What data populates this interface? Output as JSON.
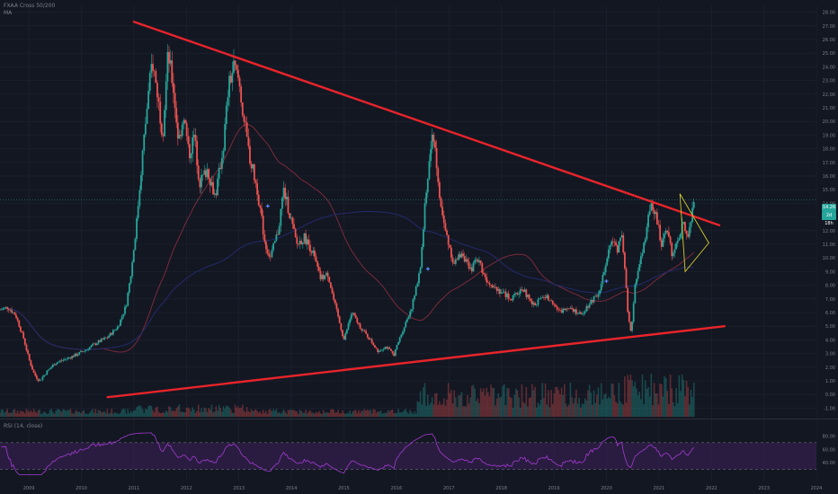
{
  "header": {
    "symbol_line": "FXAA Cross 50/200",
    "sub_line": "MA"
  },
  "rsi_header": {
    "title": "RSI (14, close)"
  },
  "price_tags": {
    "last": "14.26",
    "countdown": "2d 18h"
  },
  "colors": {
    "background": "#131722",
    "grid": "#1e2433",
    "up": "#26a69a",
    "down": "#ef5350",
    "trendline": "#e8242a",
    "triangle": "#d4cc2e",
    "rsi": "#a23bd2",
    "rsi_band": "#3a1f55",
    "ma": "#7b2a3a",
    "ma_long": "#232a6b"
  },
  "chart_data": {
    "type": "candlestick",
    "x_axis_labels": [
      "2009",
      "2010",
      "2011",
      "2012",
      "2013",
      "2014",
      "2015",
      "2016",
      "2017",
      "2018",
      "2019",
      "2020",
      "2021",
      "2022",
      "2023",
      "2024"
    ],
    "x_range": [
      2008.45,
      2024.0
    ],
    "y_axis_labels": [
      "28.00",
      "27.00",
      "26.00",
      "25.00",
      "24.00",
      "23.00",
      "22.00",
      "21.00",
      "20.00",
      "19.00",
      "18.00",
      "17.00",
      "16.00",
      "15.00",
      "14.00",
      "13.00",
      "12.00",
      "11.00",
      "10.00",
      "9.00",
      "8.00",
      "7.00",
      "6.00",
      "5.00",
      "4.00",
      "3.00",
      "2.00",
      "1.00",
      "0.00",
      "-1.00"
    ],
    "ylim": [
      -1.5,
      28.5
    ],
    "price_path": [
      [
        2008.45,
        6.2
      ],
      [
        2008.6,
        6.4
      ],
      [
        2008.75,
        5.8
      ],
      [
        2008.9,
        4.1
      ],
      [
        2009.0,
        2.6
      ],
      [
        2009.1,
        1.5
      ],
      [
        2009.2,
        1.0
      ],
      [
        2009.35,
        1.7
      ],
      [
        2009.5,
        2.3
      ],
      [
        2009.7,
        2.6
      ],
      [
        2009.9,
        2.9
      ],
      [
        2010.1,
        3.3
      ],
      [
        2010.3,
        3.8
      ],
      [
        2010.5,
        4.2
      ],
      [
        2010.7,
        5.0
      ],
      [
        2010.85,
        6.5
      ],
      [
        2010.95,
        9.0
      ],
      [
        2011.05,
        12.5
      ],
      [
        2011.15,
        17.0
      ],
      [
        2011.25,
        21.0
      ],
      [
        2011.35,
        24.5
      ],
      [
        2011.45,
        22.0
      ],
      [
        2011.55,
        19.0
      ],
      [
        2011.65,
        25.0
      ],
      [
        2011.75,
        22.5
      ],
      [
        2011.85,
        18.5
      ],
      [
        2011.95,
        20.5
      ],
      [
        2012.05,
        17.5
      ],
      [
        2012.15,
        19.0
      ],
      [
        2012.25,
        15.5
      ],
      [
        2012.4,
        16.5
      ],
      [
        2012.55,
        14.5
      ],
      [
        2012.7,
        18.0
      ],
      [
        2012.8,
        22.5
      ],
      [
        2012.9,
        24.0
      ],
      [
        2013.0,
        23.0
      ],
      [
        2013.1,
        20.0
      ],
      [
        2013.2,
        17.5
      ],
      [
        2013.35,
        15.0
      ],
      [
        2013.5,
        11.0
      ],
      [
        2013.6,
        10.0
      ],
      [
        2013.75,
        12.0
      ],
      [
        2013.85,
        15.0
      ],
      [
        2013.95,
        13.5
      ],
      [
        2014.1,
        11.0
      ],
      [
        2014.25,
        11.5
      ],
      [
        2014.4,
        10.5
      ],
      [
        2014.55,
        8.5
      ],
      [
        2014.7,
        8.8
      ],
      [
        2014.8,
        7.0
      ],
      [
        2014.9,
        5.5
      ],
      [
        2015.0,
        4.0
      ],
      [
        2015.15,
        6.0
      ],
      [
        2015.3,
        5.0
      ],
      [
        2015.5,
        4.0
      ],
      [
        2015.65,
        3.2
      ],
      [
        2015.8,
        3.5
      ],
      [
        2015.95,
        2.9
      ],
      [
        2016.1,
        4.5
      ],
      [
        2016.3,
        6.5
      ],
      [
        2016.45,
        9.0
      ],
      [
        2016.55,
        14.0
      ],
      [
        2016.65,
        18.0
      ],
      [
        2016.72,
        19.1
      ],
      [
        2016.8,
        15.0
      ],
      [
        2016.9,
        12.5
      ],
      [
        2017.0,
        11.0
      ],
      [
        2017.1,
        9.5
      ],
      [
        2017.25,
        10.5
      ],
      [
        2017.4,
        9.0
      ],
      [
        2017.55,
        10.0
      ],
      [
        2017.7,
        8.5
      ],
      [
        2017.85,
        8.0
      ],
      [
        2018.0,
        7.5
      ],
      [
        2018.2,
        7.0
      ],
      [
        2018.4,
        7.8
      ],
      [
        2018.6,
        6.5
      ],
      [
        2018.8,
        7.2
      ],
      [
        2018.95,
        7.0
      ],
      [
        2019.1,
        6.0
      ],
      [
        2019.3,
        6.5
      ],
      [
        2019.5,
        5.8
      ],
      [
        2019.7,
        6.8
      ],
      [
        2019.85,
        7.5
      ],
      [
        2020.0,
        9.5
      ],
      [
        2020.1,
        11.5
      ],
      [
        2020.2,
        10.5
      ],
      [
        2020.28,
        12.0
      ],
      [
        2020.35,
        9.0
      ],
      [
        2020.42,
        5.5
      ],
      [
        2020.47,
        4.5
      ],
      [
        2020.55,
        8.0
      ],
      [
        2020.65,
        10.0
      ],
      [
        2020.75,
        11.5
      ],
      [
        2020.85,
        14.2
      ],
      [
        2020.95,
        13.0
      ],
      [
        2021.05,
        11.0
      ],
      [
        2021.15,
        12.5
      ],
      [
        2021.25,
        10.0
      ],
      [
        2021.35,
        11.0
      ],
      [
        2021.45,
        12.5
      ],
      [
        2021.55,
        11.5
      ],
      [
        2021.62,
        13.0
      ],
      [
        2021.68,
        14.26
      ]
    ],
    "trendlines": [
      {
        "name": "upper",
        "from": [
          2011.0,
          27.3
        ],
        "to": [
          2022.15,
          12.4
        ]
      },
      {
        "name": "lower",
        "from": [
          2010.5,
          -0.2
        ],
        "to": [
          2022.25,
          5.0
        ]
      }
    ],
    "triangle": [
      [
        2021.4,
        14.7
      ],
      [
        2021.95,
        11.1
      ],
      [
        2021.5,
        9.0
      ]
    ],
    "annotations": [
      {
        "x": 2013.55,
        "y": 13.8,
        "marker": "cross"
      },
      {
        "x": 2016.6,
        "y": 9.2,
        "marker": "cross"
      },
      {
        "x": 2020.0,
        "y": 8.3,
        "marker": "cross"
      }
    ],
    "last_price": 14.26,
    "rsi": {
      "y_labels": [
        "80.00",
        "60.00",
        "40.00"
      ],
      "upper": 70,
      "lower": 30
    }
  }
}
